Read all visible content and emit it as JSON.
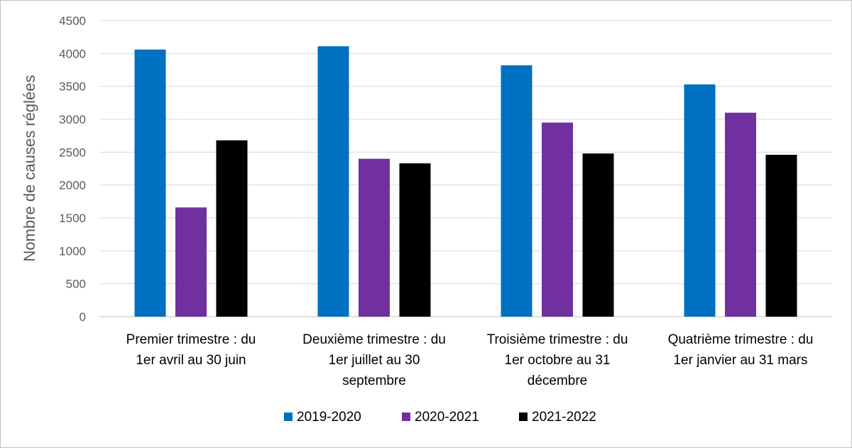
{
  "chart_data": {
    "type": "bar",
    "ylabel": "Nombre de causes réglées",
    "ylim": [
      0,
      4500
    ],
    "yticks": [
      0,
      500,
      1000,
      1500,
      2000,
      2500,
      3000,
      3500,
      4000,
      4500
    ],
    "grid": true,
    "legend_position": "bottom",
    "categories": [
      [
        "Premier trimestre : du",
        "1er avril au 30 juin"
      ],
      [
        "Deuxième trimestre : du",
        "1er juillet au 30",
        "septembre"
      ],
      [
        "Troisième trimestre : du",
        "1er octobre au 31",
        "décembre"
      ],
      [
        "Quatrième trimestre : du",
        "1er janvier au 31 mars"
      ]
    ],
    "series": [
      {
        "name": "2019-2020",
        "color": "#0070c0",
        "values": [
          4060,
          4110,
          3820,
          3530
        ]
      },
      {
        "name": "2020-2021",
        "color": "#7030a0",
        "values": [
          1660,
          2400,
          2950,
          3100
        ]
      },
      {
        "name": "2021-2022",
        "color": "#000000",
        "values": [
          2680,
          2330,
          2480,
          2460
        ]
      }
    ]
  }
}
